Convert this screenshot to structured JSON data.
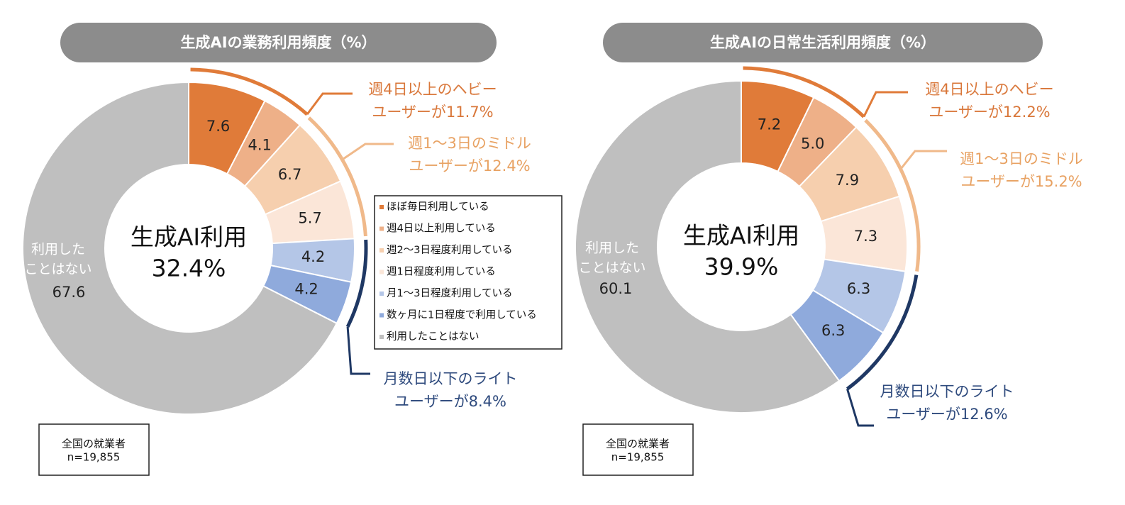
{
  "legend": {
    "labels": [
      "ほぼ毎日利用している",
      "週4日以上利用している",
      "週2～3日程度利用している",
      "週1日程度利用している",
      "月1～3日程度利用している",
      "数ヶ月に1日程度で利用している",
      "利用したことはない"
    ],
    "colors": [
      "#e07b39",
      "#eeb088",
      "#f6cfae",
      "#fbe6d8",
      "#b4c6e7",
      "#8faadc",
      "#bfbfbf"
    ]
  },
  "chart_data": [
    {
      "type": "donut",
      "title": "生成AIの業務利用頻度（%）",
      "values": [
        7.6,
        4.1,
        6.7,
        5.7,
        4.2,
        4.2,
        67.6
      ],
      "center_label": "生成AI利用",
      "total": 32.4,
      "total_label": "32.4%",
      "inner_label": [
        "利用した",
        "ことはない"
      ],
      "groups": [
        {
          "lines": [
            "週4日以上のヘビー",
            "ユーザーが11.7%"
          ],
          "color": "#e07b39"
        },
        {
          "lines": [
            "週1～3日のミドル",
            "ユーザーが12.4%"
          ],
          "color": "#f0b98a"
        },
        {
          "lines": [
            "月数日以下のライト",
            "ユーザーが8.4%"
          ],
          "color": "#1f3864"
        }
      ],
      "note": [
        "全国の就業者",
        "n=19,855"
      ]
    },
    {
      "type": "donut",
      "title": "生成AIの日常生活利用頻度（%）",
      "values": [
        7.2,
        5.0,
        7.9,
        7.3,
        6.3,
        6.3,
        60.1
      ],
      "value_labels": [
        "7.2",
        "5.0",
        "7.9",
        "7.3",
        "6.3",
        "6.3",
        "60.1"
      ],
      "center_label": "生成AI利用",
      "total": 39.9,
      "total_label": "39.9%",
      "inner_label": [
        "利用した",
        "ことはない"
      ],
      "groups": [
        {
          "lines": [
            "週4日以上のヘビー",
            "ユーザーが12.2%"
          ],
          "color": "#e07b39"
        },
        {
          "lines": [
            "週1～3日のミドル",
            "ユーザーが15.2%"
          ],
          "color": "#f0b98a"
        },
        {
          "lines": [
            "月数日以下のライト",
            "ユーザーが12.6%"
          ],
          "color": "#1f3864"
        }
      ],
      "note": [
        "全国の就業者",
        "n=19,855"
      ]
    }
  ]
}
